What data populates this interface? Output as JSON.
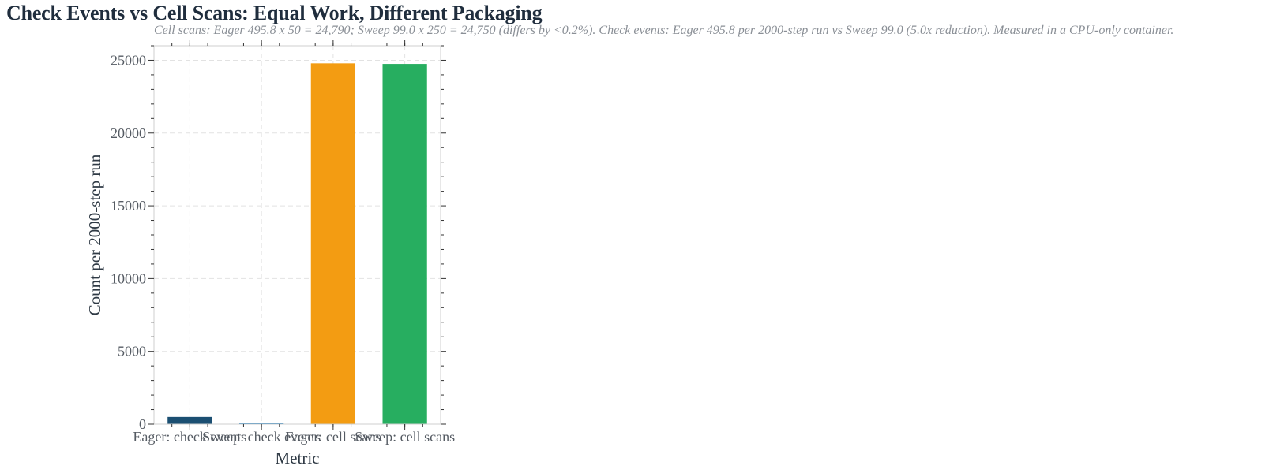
{
  "chart_data": {
    "type": "bar",
    "title": "Check Events vs Cell Scans: Equal Work, Different Packaging",
    "subtitle": "Cell scans: Eager 495.8 x 50 = 24,790; Sweep 99.0 x 250 = 24,750 (differs by <0.2%). Check events: Eager 495.8 per 2000-step run vs Sweep 99.0 (5.0x reduction). Measured in a CPU-only container.",
    "xlabel": "Metric",
    "ylabel": "Count per 2000-step run",
    "categories": [
      "Eager: check events",
      "Sweep: check events",
      "Eager: cell scans",
      "Sweep: cell scans"
    ],
    "values": [
      495.8,
      99.0,
      24790,
      24750
    ],
    "colors": [
      "#1b4f72",
      "#2e86c1",
      "#f39c12",
      "#27ae60"
    ],
    "ylim": [
      0,
      26000
    ],
    "yticks": [
      0,
      5000,
      10000,
      15000,
      20000,
      25000
    ],
    "grid": true,
    "legend": "none"
  }
}
